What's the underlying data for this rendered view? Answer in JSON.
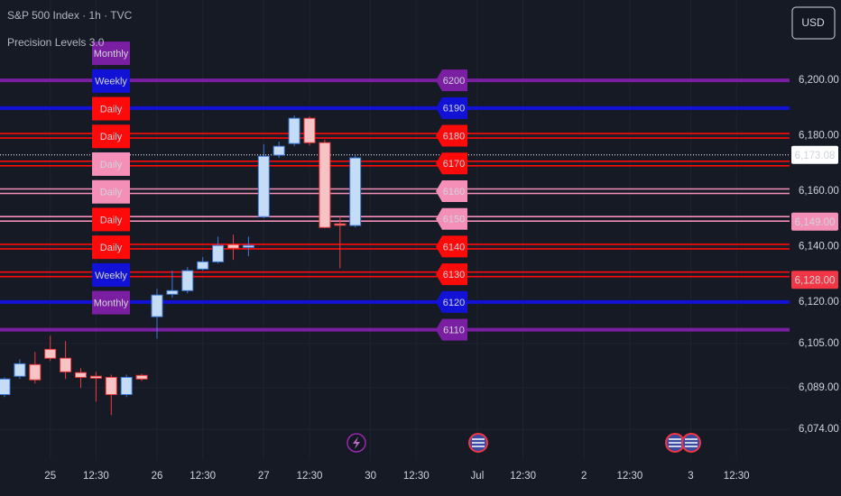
{
  "chart_data": {
    "type": "candlestick",
    "title": "S&P 500 Index · 1h · TVC",
    "subtitle": "Precision Levels 3.0",
    "currency": "USD",
    "ylim": [
      6063,
      6229
    ],
    "yticks": [
      {
        "value": 6200,
        "label": "6,200.00"
      },
      {
        "value": 6180,
        "label": "6,180.00"
      },
      {
        "value": 6160,
        "label": "6,160.00"
      },
      {
        "value": 6140,
        "label": "6,140.00"
      },
      {
        "value": 6120,
        "label": "6,120.00"
      },
      {
        "value": 6105,
        "label": "6,105.00"
      },
      {
        "value": 6089,
        "label": "6,089.00"
      },
      {
        "value": 6074,
        "label": "6,074.00"
      }
    ],
    "grid": true,
    "up_color": "#c5dcf7",
    "up_border": "#3d7bd9",
    "down_color": "#f7c4c6",
    "down_border": "#ef3b3b",
    "categories": [
      null,
      null,
      null,
      "25",
      null,
      null,
      "12:30",
      null,
      null,
      null,
      "26",
      null,
      null,
      "12:30",
      null,
      null,
      null,
      "27",
      null,
      null,
      "12:30",
      null,
      null,
      null,
      "30",
      null,
      null,
      "12:30",
      null,
      null,
      null,
      "Jul",
      null,
      null,
      "12:30",
      null,
      null,
      null,
      "2",
      null,
      null,
      "12:30",
      null,
      null,
      null,
      "3",
      null,
      null,
      "12:30"
    ],
    "open": [
      6086.6,
      6093.2,
      6097.4,
      6102.9,
      6099.7,
      6094.5,
      6093.2,
      6092.8,
      6086.6,
      6093.5,
      6114.7,
      6122.8,
      6124.1,
      6131.9,
      6134.5,
      6140.7,
      6139.7,
      6150.8,
      6173.0,
      6177.2,
      6186.3,
      6177.5,
      6148.2,
      6147.6,
      null,
      null,
      null,
      null,
      null,
      null,
      null,
      null,
      null,
      null,
      null,
      null,
      null,
      null,
      null,
      null,
      null,
      null,
      null,
      null,
      null,
      null,
      null,
      null,
      null
    ],
    "high": [
      6092.8,
      6099.3,
      6102.0,
      6107.8,
      6105.9,
      6096.1,
      6094.8,
      6093.8,
      6093.8,
      6094.1,
      6124.8,
      6131.3,
      6132.6,
      6136.2,
      6143.6,
      6144.3,
      6143.6,
      6176.9,
      6177.9,
      6187.3,
      6187.0,
      6178.5,
      6150.8,
      6173.0,
      null,
      null,
      null,
      null,
      null,
      null,
      null,
      null,
      null,
      null,
      null,
      null,
      null,
      null,
      null,
      null,
      null,
      null,
      null,
      null,
      null,
      null,
      null,
      null,
      null
    ],
    "low": [
      6085.7,
      6092.2,
      6090.6,
      6098.7,
      6092.2,
      6089.0,
      6084.0,
      6079.2,
      6085.7,
      6091.5,
      6106.8,
      6121.5,
      6123.1,
      6131.3,
      6133.9,
      6135.2,
      6136.5,
      6150.2,
      6172.0,
      6176.2,
      6176.5,
      6146.6,
      6132.2,
      6146.9,
      null,
      null,
      null,
      null,
      null,
      null,
      null,
      null,
      null,
      null,
      null,
      null,
      null,
      null,
      null,
      null,
      null,
      null,
      null,
      null,
      null,
      null,
      null,
      null,
      null
    ],
    "close": [
      6092.2,
      6097.7,
      6091.9,
      6099.7,
      6094.8,
      6092.8,
      6092.5,
      6086.6,
      6092.8,
      6092.2,
      6122.5,
      6124.1,
      6131.3,
      6134.5,
      6140.4,
      6139.4,
      6140.4,
      6172.6,
      6176.2,
      6186.3,
      6177.5,
      6146.9,
      6148.0,
      6172.0,
      null,
      null,
      null,
      null,
      null,
      null,
      null,
      null,
      null,
      null,
      null,
      null,
      null,
      null,
      null,
      null,
      null,
      null,
      null,
      null,
      null,
      null,
      null,
      null,
      null
    ],
    "levels": [
      {
        "price": 6200,
        "timeframe": "Monthly",
        "color": "#7b1fa2",
        "line": "solid"
      },
      {
        "price": 6190,
        "timeframe": "Weekly",
        "color": "#1212d6",
        "line": "solid"
      },
      {
        "price": 6180,
        "timeframe": "Daily",
        "color": "#ff0a0a",
        "line": "double"
      },
      {
        "price": 6170,
        "timeframe": "Daily",
        "color": "#ff0a0a",
        "line": "double"
      },
      {
        "price": 6160,
        "timeframe": "Daily",
        "color": "#f48fb8",
        "line": "double"
      },
      {
        "price": 6150,
        "timeframe": "Daily",
        "color": "#f48fb8",
        "line": "double"
      },
      {
        "price": 6140,
        "timeframe": "Daily",
        "color": "#ff0a0a",
        "line": "double"
      },
      {
        "price": 6130,
        "timeframe": "Daily",
        "color": "#ff0a0a",
        "line": "double"
      },
      {
        "price": 6120,
        "timeframe": "Weekly",
        "color": "#1212d6",
        "line": "solid"
      },
      {
        "price": 6110,
        "timeframe": "Monthly",
        "color": "#7b1fa2",
        "line": "solid"
      }
    ],
    "price_tags": [
      {
        "value": 6173.08,
        "label": "6,173.08",
        "color": "#ffffff",
        "text_color": "#131722",
        "marker_line": "dotted"
      },
      {
        "value": 6149,
        "label": "6,149.00",
        "color": "#f48fb8",
        "text_color": "#131722"
      },
      {
        "value": 6128,
        "label": "6,128.00",
        "color": "#f23645",
        "text_color": "#ffffff"
      }
    ]
  }
}
